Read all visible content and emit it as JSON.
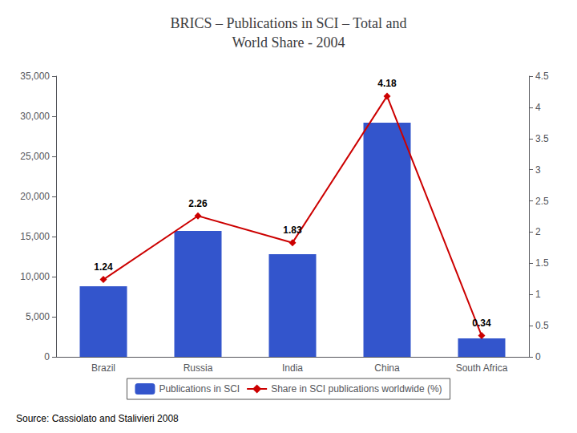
{
  "chart_data": {
    "type": "bar",
    "title": "BRICS – Publications in SCI – Total and\nWorld Share - 2004",
    "annotations": [
      "Source: Cassiolato and Stalivieri 2008"
    ],
    "categories": [
      "Brazil",
      "Russia",
      "India",
      "China",
      "South Africa"
    ],
    "series": [
      {
        "name": "Publications in SCI",
        "type": "bar",
        "color": "#3355CC",
        "values": [
          8800,
          15700,
          12800,
          29200,
          2300
        ]
      },
      {
        "name": "Share in SCI publications worldwide (%)",
        "type": "line",
        "axis": "y2",
        "color": "#CC0000",
        "marker": "diamond",
        "data_labels": true,
        "values": [
          1.24,
          2.26,
          1.83,
          4.18,
          0.34
        ]
      }
    ],
    "ylim": [
      0,
      35000
    ],
    "yticks": [
      0,
      {
        "value": 5000,
        "label": "5,000"
      },
      {
        "value": 10000,
        "label": "10,000"
      },
      {
        "value": 15000,
        "label": "15,000"
      },
      {
        "value": 20000,
        "label": "20,000"
      },
      {
        "value": 25000,
        "label": "25,000"
      },
      {
        "value": 30000,
        "label": "30,000"
      },
      {
        "value": 35000,
        "label": "35,000"
      }
    ],
    "y2lim": [
      0,
      4.5
    ],
    "y2ticks": [
      0,
      0.5,
      1,
      1.5,
      2,
      2.5,
      3,
      3.5,
      4,
      4.5
    ],
    "grid": false,
    "legend": "bottom"
  }
}
